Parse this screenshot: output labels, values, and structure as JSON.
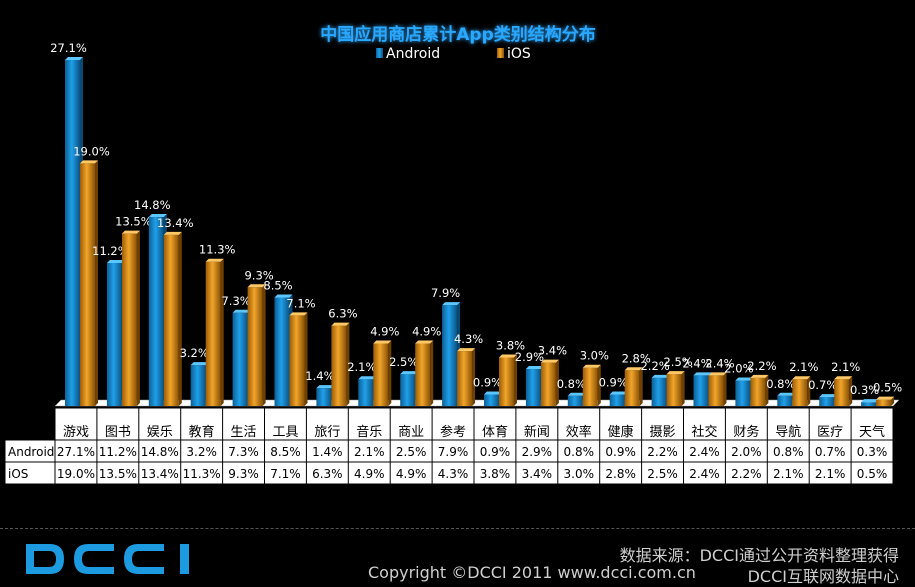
{
  "chart_data": {
    "type": "bar",
    "title": "中国应用商店累计App类别结构分布",
    "categories": [
      "游戏",
      "图书",
      "娱乐",
      "教育",
      "生活",
      "工具",
      "旅行",
      "音乐",
      "商业",
      "参考",
      "体育",
      "新闻",
      "效率",
      "健康",
      "摄影",
      "社交",
      "财务",
      "导航",
      "医疗",
      "天气"
    ],
    "series": [
      {
        "name": "Android",
        "color": "#1a8fd8",
        "values": [
          27.1,
          11.2,
          14.8,
          3.2,
          7.3,
          8.5,
          1.4,
          2.1,
          2.5,
          7.9,
          0.9,
          2.9,
          0.8,
          0.9,
          2.2,
          2.4,
          2.0,
          0.8,
          0.7,
          0.3
        ],
        "labels": [
          "27.1%",
          "11.2%",
          "14.8%",
          "3.2%",
          "7.3%",
          "8.5%",
          "1.4%",
          "2.1%",
          "2.5%",
          "7.9%",
          "0.9%",
          "2.9%",
          "0.8%",
          "0.9%",
          "2.2%",
          "2.4%",
          "2.0%",
          "0.8%",
          "0.7%",
          "0.3%"
        ]
      },
      {
        "name": "iOS",
        "color": "#e08f12",
        "values": [
          19.0,
          13.5,
          13.4,
          11.3,
          9.3,
          7.1,
          6.3,
          4.9,
          4.9,
          4.3,
          3.8,
          3.4,
          3.0,
          2.8,
          2.5,
          2.4,
          2.2,
          2.1,
          2.1,
          0.5
        ],
        "labels": [
          "19.0%",
          "13.5%",
          "13.4%",
          "11.3%",
          "9.3%",
          "7.1%",
          "6.3%",
          "4.9%",
          "4.9%",
          "4.3%",
          "3.8%",
          "3.4%",
          "3.0%",
          "2.8%",
          "2.5%",
          "2.4%",
          "2.2%",
          "2.1%",
          "2.1%",
          "0.5%"
        ]
      }
    ],
    "ylim": [
      0,
      30
    ],
    "legend": "top-center",
    "grid": false
  },
  "footer": {
    "logo_text": "DCCI",
    "source": "数据来源：DCCI通过公开资料整理获得",
    "copyright": "Copyright ©DCCI 2011 www.dcci.com.cn",
    "center_name": "DCCI互联网数据中心"
  }
}
